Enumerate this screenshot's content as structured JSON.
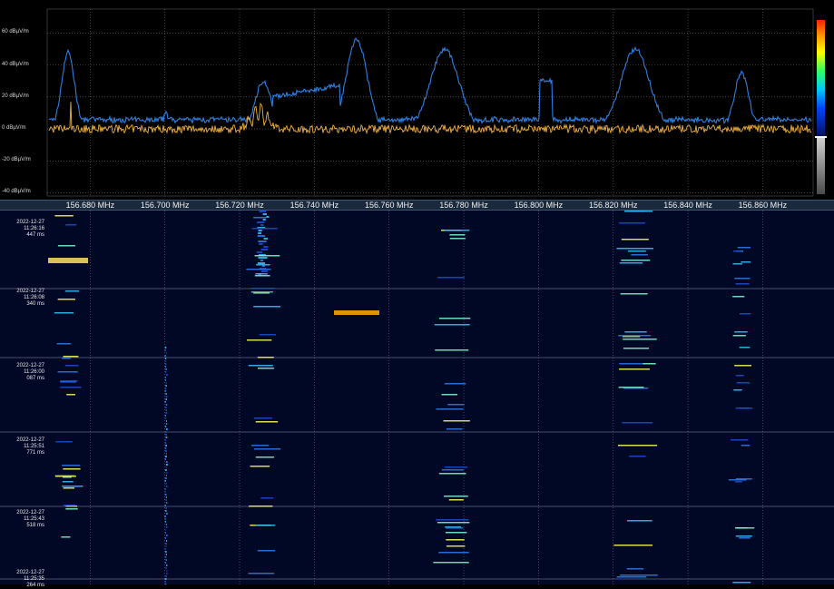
{
  "spectrum": {
    "db_labels": [
      "60 dBµV/m",
      "40 dBµV/m",
      "20 dBµV/m",
      "0 dBµV/m",
      "-20 dBµV/m",
      "-40 dBµV/m"
    ],
    "db_values": [
      60,
      40,
      20,
      0,
      -20,
      -40
    ],
    "db_range": [
      -42,
      75
    ],
    "trace_colors": {
      "max_hold": "#2e7fe0",
      "live": "#f0b040"
    }
  },
  "frequency_axis": {
    "labels": [
      "156.680 MHz",
      "156.700 MHz",
      "156.720 MHz",
      "156.740 MHz",
      "156.760 MHz",
      "156.780 MHz",
      "156.800 MHz",
      "156.820 MHz",
      "156.840 MHz",
      "156.860 MHz"
    ],
    "values_mhz": [
      156.68,
      156.7,
      156.72,
      156.74,
      156.76,
      156.78,
      156.8,
      156.82,
      156.84,
      156.86
    ]
  },
  "waterfall": {
    "timestamps": [
      [
        "2022-12-27",
        "11:26:16",
        "447 ms"
      ],
      [
        "2022-12-27",
        "11:26:08",
        "340 ms"
      ],
      [
        "2022-12-27",
        "11:26:00",
        "087 ms"
      ],
      [
        "2022-12-27",
        "11:25:51",
        "771 ms"
      ],
      [
        "2022-12-27",
        "11:25:43",
        "518 ms"
      ],
      [
        "2022-12-27",
        "11:25:35",
        "264 ms"
      ]
    ]
  }
}
